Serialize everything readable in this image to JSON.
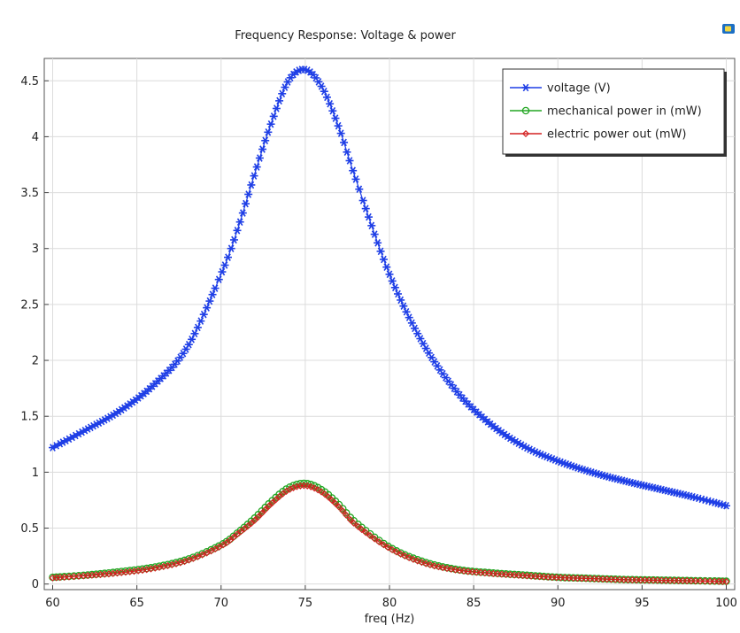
{
  "chart_data": {
    "type": "line",
    "title": "Frequency Response: Voltage & power",
    "xlabel": "freq (Hz)",
    "ylabel": "",
    "xlim": [
      59.5,
      100.5
    ],
    "ylim": [
      -0.05,
      4.7
    ],
    "grid": true,
    "legend_position": "top-right",
    "x_ticks": [
      60,
      65,
      70,
      75,
      80,
      85,
      90,
      95,
      100
    ],
    "x_tick_labels": [
      "60",
      "65",
      "70",
      "75",
      "80",
      "85",
      "90",
      "95",
      "100"
    ],
    "y_ticks": [
      0,
      0.5,
      1,
      1.5,
      2,
      2.5,
      3,
      3.5,
      4,
      4.5
    ],
    "y_tick_labels": [
      "0",
      "0.5",
      "1",
      "1.5",
      "2",
      "2.5",
      "3",
      "3.5",
      "4",
      "4.5"
    ],
    "x": [
      60,
      62,
      64,
      66,
      68,
      70,
      71,
      72,
      73,
      74,
      75,
      76,
      77,
      78,
      80,
      82,
      84,
      86,
      88,
      90,
      92,
      94,
      96,
      98,
      100
    ],
    "series": [
      {
        "name": "voltage (V)",
        "color": "#1f3fe6",
        "marker": "asterisk",
        "values": [
          1.22,
          1.38,
          1.55,
          1.78,
          2.12,
          2.77,
          3.18,
          3.67,
          4.13,
          4.5,
          4.6,
          4.44,
          4.08,
          3.62,
          2.77,
          2.15,
          1.72,
          1.43,
          1.23,
          1.1,
          1.0,
          0.92,
          0.85,
          0.78,
          0.7
        ]
      },
      {
        "name": "mechanical power in (mW)",
        "color": "#22a622",
        "marker": "circle",
        "values": [
          0.06,
          0.08,
          0.11,
          0.15,
          0.22,
          0.35,
          0.46,
          0.59,
          0.74,
          0.86,
          0.9,
          0.84,
          0.71,
          0.55,
          0.33,
          0.2,
          0.13,
          0.1,
          0.08,
          0.06,
          0.05,
          0.04,
          0.035,
          0.03,
          0.025
        ]
      },
      {
        "name": "electric power out (mW)",
        "color": "#d42020",
        "marker": "diamond",
        "values": [
          0.055,
          0.075,
          0.1,
          0.14,
          0.21,
          0.34,
          0.45,
          0.57,
          0.72,
          0.84,
          0.88,
          0.82,
          0.69,
          0.53,
          0.32,
          0.19,
          0.125,
          0.095,
          0.075,
          0.058,
          0.048,
          0.038,
          0.033,
          0.028,
          0.022
        ]
      }
    ]
  },
  "toolbar_icon": "camera-export-icon"
}
